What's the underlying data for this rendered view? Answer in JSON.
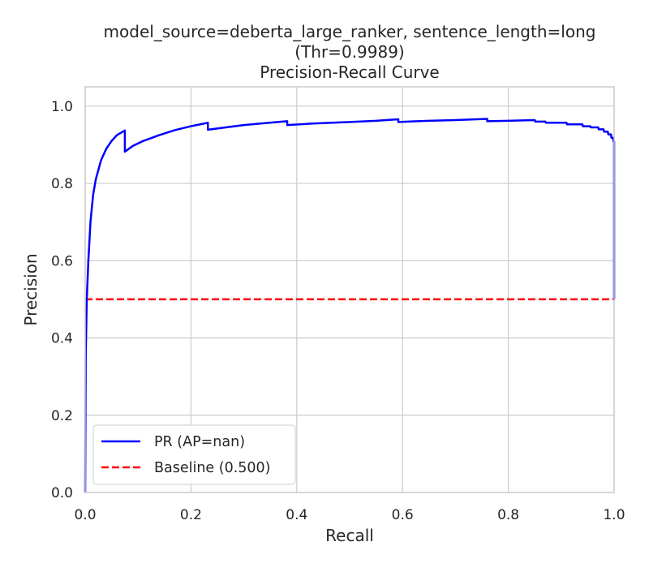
{
  "chart_data": {
    "type": "line",
    "title_lines": [
      "model_source=deberta_large_ranker, sentence_length=long",
      "(Thr=0.9989)",
      "Precision-Recall Curve"
    ],
    "xlabel": "Recall",
    "ylabel": "Precision",
    "xlim": [
      0.0,
      1.0
    ],
    "ylim": [
      0.0,
      1.05
    ],
    "x_ticks": [
      "0.0",
      "0.2",
      "0.4",
      "0.6",
      "0.8",
      "1.0"
    ],
    "y_ticks": [
      "0.0",
      "0.2",
      "0.4",
      "0.6",
      "0.8",
      "1.0"
    ],
    "grid": true,
    "legend_position": "lower-left",
    "series": [
      {
        "name": "PR (AP=nan)",
        "color": "#0000ff",
        "style": "solid",
        "points": [
          [
            0.0,
            0.0
          ],
          [
            0.001,
            0.35
          ],
          [
            0.003,
            0.5
          ],
          [
            0.006,
            0.6
          ],
          [
            0.01,
            0.7
          ],
          [
            0.015,
            0.77
          ],
          [
            0.02,
            0.81
          ],
          [
            0.03,
            0.86
          ],
          [
            0.04,
            0.89
          ],
          [
            0.05,
            0.91
          ],
          [
            0.06,
            0.925
          ],
          [
            0.075,
            0.937
          ],
          [
            0.075,
            0.882
          ],
          [
            0.09,
            0.897
          ],
          [
            0.11,
            0.91
          ],
          [
            0.14,
            0.925
          ],
          [
            0.17,
            0.938
          ],
          [
            0.2,
            0.948
          ],
          [
            0.232,
            0.957
          ],
          [
            0.232,
            0.939
          ],
          [
            0.26,
            0.944
          ],
          [
            0.3,
            0.951
          ],
          [
            0.34,
            0.956
          ],
          [
            0.382,
            0.961
          ],
          [
            0.382,
            0.951
          ],
          [
            0.43,
            0.955
          ],
          [
            0.5,
            0.959
          ],
          [
            0.55,
            0.962
          ],
          [
            0.592,
            0.966
          ],
          [
            0.592,
            0.959
          ],
          [
            0.65,
            0.962
          ],
          [
            0.7,
            0.964
          ],
          [
            0.76,
            0.967
          ],
          [
            0.76,
            0.961
          ],
          [
            0.8,
            0.962
          ],
          [
            0.85,
            0.964
          ],
          [
            0.851,
            0.96
          ],
          [
            0.87,
            0.96
          ],
          [
            0.871,
            0.957
          ],
          [
            0.91,
            0.957
          ],
          [
            0.911,
            0.953
          ],
          [
            0.94,
            0.953
          ],
          [
            0.941,
            0.948
          ],
          [
            0.955,
            0.948
          ],
          [
            0.956,
            0.945
          ],
          [
            0.97,
            0.945
          ],
          [
            0.971,
            0.94
          ],
          [
            0.98,
            0.94
          ],
          [
            0.981,
            0.934
          ],
          [
            0.988,
            0.934
          ],
          [
            0.989,
            0.927
          ],
          [
            0.994,
            0.927
          ],
          [
            0.995,
            0.918
          ],
          [
            0.998,
            0.918
          ],
          [
            0.999,
            0.909
          ],
          [
            1.0,
            0.909
          ],
          [
            1.0,
            0.5
          ]
        ]
      },
      {
        "name": "Baseline (0.500)",
        "color": "#ff0000",
        "style": "dashed",
        "points": [
          [
            0.0,
            0.5
          ],
          [
            1.0,
            0.5
          ]
        ]
      }
    ]
  }
}
